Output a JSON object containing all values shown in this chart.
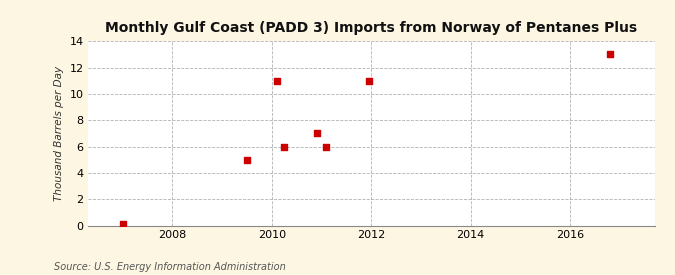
{
  "title": "Monthly Gulf Coast (PADD 3) Imports from Norway of Pentanes Plus",
  "ylabel": "Thousand Barrels per Day",
  "source": "Source: U.S. Energy Information Administration",
  "background_color": "#fdf6e3",
  "plot_background_color": "#ffffff",
  "scatter_color": "#cc0000",
  "marker": "s",
  "marker_size": 4,
  "xlim": [
    2006.3,
    2017.7
  ],
  "ylim": [
    0,
    14
  ],
  "yticks": [
    0,
    2,
    4,
    6,
    8,
    10,
    12,
    14
  ],
  "xticks": [
    2008,
    2010,
    2012,
    2014,
    2016
  ],
  "grid_color": "#aaaaaa",
  "points_x": [
    2007.0,
    2009.5,
    2010.1,
    2010.25,
    2010.9,
    2011.1,
    2011.95,
    2016.8
  ],
  "points_y": [
    0.1,
    5,
    11,
    6,
    7,
    6,
    11,
    13
  ]
}
